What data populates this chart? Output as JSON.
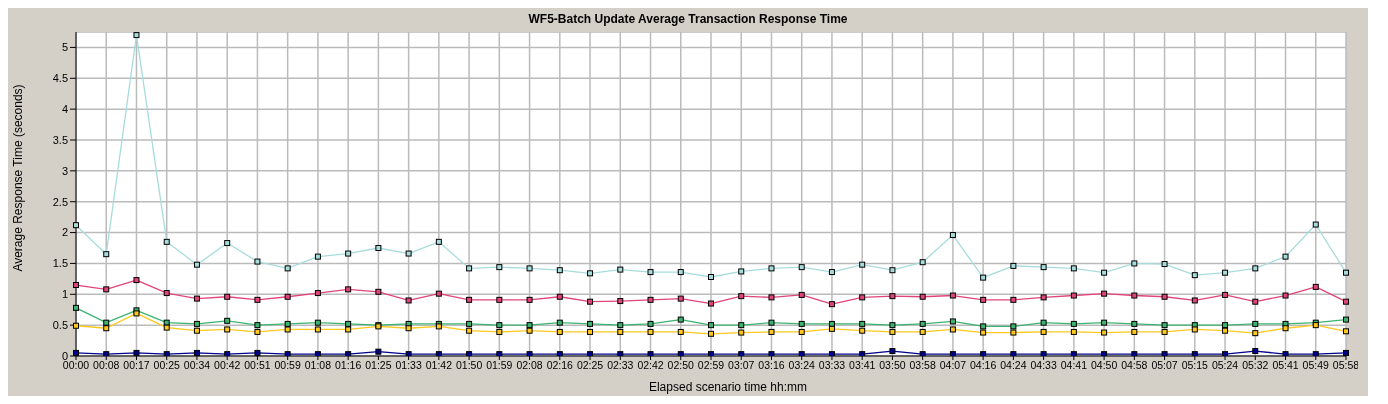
{
  "chart_data": {
    "type": "line",
    "title": "WF5-Batch Update Average Transaction Response Time",
    "xlabel": "Elapsed scenario time hh:mm",
    "ylabel": "Average Response Time (seconds)",
    "categories": [
      "00:00",
      "00:08",
      "00:17",
      "00:25",
      "00:34",
      "00:42",
      "00:51",
      "00:59",
      "01:08",
      "01:16",
      "01:25",
      "01:33",
      "01:42",
      "01:50",
      "01:59",
      "02:08",
      "02:16",
      "02:25",
      "02:33",
      "02:42",
      "02:50",
      "02:59",
      "03:07",
      "03:16",
      "03:24",
      "03:33",
      "03:41",
      "03:50",
      "03:58",
      "04:07",
      "04:16",
      "04:24",
      "04:33",
      "04:41",
      "04:50",
      "04:58",
      "05:07",
      "05:15",
      "05:24",
      "05:32",
      "05:41",
      "05:49",
      "05:58"
    ],
    "series": [
      {
        "color": "#a8dcdc",
        "values": [
          2.12,
          1.65,
          5.2,
          1.85,
          1.48,
          1.83,
          1.53,
          1.42,
          1.61,
          1.66,
          1.75,
          1.66,
          1.85,
          1.42,
          1.44,
          1.42,
          1.39,
          1.34,
          1.4,
          1.36,
          1.36,
          1.28,
          1.37,
          1.42,
          1.44,
          1.36,
          1.48,
          1.39,
          1.52,
          1.96,
          1.27,
          1.46,
          1.44,
          1.42,
          1.35,
          1.5,
          1.49,
          1.31,
          1.35,
          1.42,
          1.61,
          2.13,
          1.35
        ]
      },
      {
        "color": "#e0457a",
        "values": [
          1.15,
          1.08,
          1.23,
          1.02,
          0.93,
          0.96,
          0.91,
          0.96,
          1.02,
          1.08,
          1.04,
          0.9,
          1.01,
          0.91,
          0.91,
          0.91,
          0.96,
          0.88,
          0.89,
          0.91,
          0.93,
          0.85,
          0.97,
          0.95,
          0.99,
          0.84,
          0.95,
          0.97,
          0.96,
          0.98,
          0.91,
          0.91,
          0.95,
          0.98,
          1.01,
          0.98,
          0.96,
          0.9,
          0.99,
          0.88,
          0.98,
          1.12,
          0.88
        ]
      },
      {
        "color": "#3cb371",
        "values": [
          0.78,
          0.54,
          0.74,
          0.54,
          0.52,
          0.57,
          0.5,
          0.52,
          0.54,
          0.52,
          0.5,
          0.52,
          0.52,
          0.52,
          0.5,
          0.5,
          0.54,
          0.52,
          0.5,
          0.52,
          0.59,
          0.5,
          0.5,
          0.54,
          0.52,
          0.52,
          0.52,
          0.5,
          0.52,
          0.56,
          0.48,
          0.48,
          0.54,
          0.52,
          0.54,
          0.52,
          0.5,
          0.5,
          0.5,
          0.52,
          0.52,
          0.54,
          0.59
        ]
      },
      {
        "color": "#ffc81e",
        "values": [
          0.49,
          0.45,
          0.69,
          0.46,
          0.41,
          0.43,
          0.39,
          0.43,
          0.43,
          0.43,
          0.48,
          0.45,
          0.48,
          0.41,
          0.39,
          0.41,
          0.39,
          0.39,
          0.39,
          0.39,
          0.39,
          0.36,
          0.38,
          0.39,
          0.39,
          0.44,
          0.41,
          0.39,
          0.39,
          0.43,
          0.38,
          0.38,
          0.39,
          0.39,
          0.38,
          0.39,
          0.39,
          0.43,
          0.41,
          0.37,
          0.45,
          0.5,
          0.4
        ]
      },
      {
        "color": "#00008b",
        "values": [
          0.05,
          0.03,
          0.05,
          0.03,
          0.05,
          0.03,
          0.05,
          0.03,
          0.03,
          0.03,
          0.07,
          0.03,
          0.03,
          0.03,
          0.03,
          0.03,
          0.03,
          0.03,
          0.03,
          0.03,
          0.03,
          0.03,
          0.03,
          0.03,
          0.03,
          0.03,
          0.03,
          0.08,
          0.03,
          0.03,
          0.03,
          0.03,
          0.03,
          0.03,
          0.03,
          0.03,
          0.03,
          0.03,
          0.03,
          0.08,
          0.03,
          0.03,
          0.05
        ]
      }
    ],
    "ylim": [
      0,
      5.25
    ],
    "yticks": [
      0,
      0.5,
      1,
      1.5,
      2,
      2.5,
      3,
      3.5,
      4,
      4.5,
      5
    ],
    "grid": true,
    "legend": false,
    "marker": "square",
    "line_style": "solid"
  }
}
